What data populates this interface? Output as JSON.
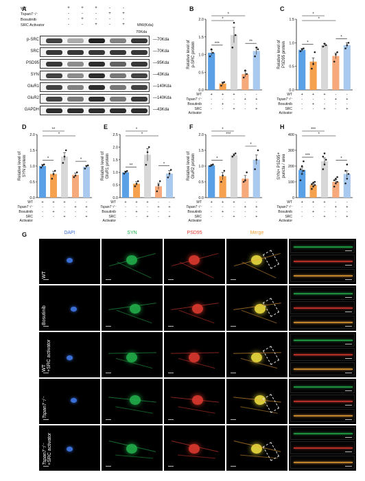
{
  "colors": {
    "wt": "#5aa0e6",
    "bosutinib": "#f6a14e",
    "src": "#d8d8d8",
    "tspan": "#f6a97a",
    "tspan_src": "#a9c9ee",
    "dapi": "#3b6fd8",
    "syn": "#22b14c",
    "psd95": "#e03a2f",
    "merge": "#f2a33a"
  },
  "panel_letters": [
    "A",
    "B",
    "C",
    "D",
    "E",
    "F",
    "G",
    "H"
  ],
  "western": {
    "lane_headers": [
      {
        "label": "WT",
        "symbols": [
          "+",
          "+",
          "+",
          "-",
          "-"
        ]
      },
      {
        "label": "Tspan7⁻/⁻",
        "symbols": [
          "-",
          "-",
          "-",
          "+",
          "+"
        ]
      },
      {
        "label": "Bosutinib",
        "symbols": [
          "-",
          "+",
          "-",
          "-",
          "-"
        ]
      },
      {
        "label": "SRC Activator",
        "symbols": [
          "-",
          "-",
          "+",
          "-",
          "+"
        ]
      }
    ],
    "mw_header": "MW(Kda)",
    "rows": [
      {
        "name": "p-SRC",
        "kda": "70Kda",
        "intensity": [
          0.85,
          0.35,
          1.0,
          0.55,
          0.9
        ]
      },
      {
        "name": "SRC",
        "kda": "70Kda",
        "intensity": [
          0.9,
          0.9,
          0.9,
          0.9,
          0.9
        ]
      },
      {
        "name": "PSD95",
        "kda": "95Kda",
        "intensity": [
          0.9,
          0.5,
          0.95,
          0.7,
          0.9
        ]
      },
      {
        "name": "SYN",
        "kda": "43Kda",
        "intensity": [
          0.85,
          0.5,
          0.95,
          0.6,
          0.85
        ]
      },
      {
        "name": "GluR1",
        "kda": "140Kda",
        "intensity": [
          0.85,
          0.55,
          0.95,
          0.6,
          0.85
        ]
      },
      {
        "name": "GluR2",
        "kda": "140Kda",
        "intensity": [
          0.85,
          0.6,
          0.95,
          0.6,
          0.9
        ]
      },
      {
        "name": "GAPDH",
        "kda": "43Kda",
        "intensity": [
          0.95,
          0.95,
          0.95,
          0.95,
          0.95
        ]
      }
    ],
    "top_kda": "70Kda"
  },
  "bar_row_labels": {
    "wt": "WT",
    "tspan": "Tspan7⁻/⁻",
    "bosutinib": "Bosutinib",
    "src_activator": "SRC",
    "src_activator2": "Activator",
    "wt_symbols": [
      "+",
      "+",
      "+",
      "-",
      "-"
    ],
    "tspan_symbols": [
      "-",
      "-",
      "-",
      "+",
      "+"
    ],
    "bos_symbols": [
      "-",
      "+",
      "-",
      "-",
      "-"
    ],
    "src_symbols": [
      "-",
      "-",
      "+",
      "-",
      "+"
    ]
  },
  "chart_data": [
    {
      "panel": "B",
      "type": "bar",
      "ylabel": "Relative level of\np-SRC protein",
      "ylim": [
        0,
        2.0
      ],
      "yticks": [
        "0.0",
        "0.5",
        "1.0",
        "1.5",
        "2.0"
      ],
      "values": [
        1.05,
        0.18,
        1.55,
        0.45,
        1.1
      ],
      "errors": [
        0.08,
        0.04,
        0.22,
        0.08,
        0.1
      ],
      "points": [
        [
          0.95,
          1.15,
          1.05
        ],
        [
          0.12,
          0.2,
          0.22
        ],
        [
          1.2,
          1.9,
          1.55
        ],
        [
          0.35,
          0.55,
          0.45
        ],
        [
          0.95,
          1.2,
          1.15
        ]
      ],
      "sig": [
        {
          "a": 0,
          "b": 1,
          "label": "***",
          "level": 0
        },
        {
          "a": 0,
          "b": 2,
          "label": "*",
          "level": 1
        },
        {
          "a": 0,
          "b": 3,
          "label": "*",
          "level": 2
        },
        {
          "a": 3,
          "b": 4,
          "label": "**",
          "level": 0
        }
      ]
    },
    {
      "panel": "C",
      "type": "bar",
      "ylabel": "Relative level of\nPSD95 protein",
      "ylim": [
        0,
        1.5
      ],
      "yticks": [
        "0.0",
        "0.5",
        "1.0",
        "1.5"
      ],
      "values": [
        0.85,
        0.6,
        0.95,
        0.72,
        0.95
      ],
      "errors": [
        0.03,
        0.08,
        0.03,
        0.06,
        0.05
      ],
      "points": [
        [
          0.82,
          0.86,
          0.88
        ],
        [
          0.45,
          0.55,
          0.8
        ],
        [
          0.92,
          0.98,
          0.95
        ],
        [
          0.6,
          0.75,
          0.8
        ],
        [
          0.88,
          0.95,
          1.0
        ]
      ],
      "sig": [
        {
          "a": 0,
          "b": 1,
          "label": "*",
          "level": 0
        },
        {
          "a": 0,
          "b": 3,
          "label": "*",
          "level": 1
        },
        {
          "a": 0,
          "b": 2,
          "label": "*",
          "level": 2
        },
        {
          "a": 3,
          "b": 4,
          "label": "*",
          "level": 0
        }
      ]
    },
    {
      "panel": "D",
      "type": "bar",
      "ylabel": "Relative level of\nSYN protein",
      "ylim": [
        0,
        2.0
      ],
      "yticks": [
        "0.0",
        "0.5",
        "1.0",
        "1.5",
        "2.0"
      ],
      "values": [
        1.0,
        0.75,
        1.3,
        0.72,
        0.98
      ],
      "errors": [
        0.05,
        0.08,
        0.12,
        0.06,
        0.04
      ],
      "points": [
        [
          0.95,
          1.02,
          1.05
        ],
        [
          0.6,
          0.75,
          0.85
        ],
        [
          1.1,
          1.3,
          1.5
        ],
        [
          0.65,
          0.7,
          0.8
        ],
        [
          0.92,
          1.0,
          1.02
        ]
      ],
      "sig": [
        {
          "a": 0,
          "b": 1,
          "label": "*",
          "level": 0
        },
        {
          "a": 0,
          "b": 3,
          "label": "*",
          "level": 1
        },
        {
          "a": 0,
          "b": 2,
          "label": "**",
          "level": 2
        },
        {
          "a": 3,
          "b": 4,
          "label": "*",
          "level": 0
        }
      ]
    },
    {
      "panel": "E",
      "type": "bar",
      "ylabel": "Relative level of\nGluR1 protein",
      "ylim": [
        0,
        2.5
      ],
      "yticks": [
        "0.0",
        "0.5",
        "1.0",
        "1.5",
        "2.0",
        "2.5"
      ],
      "values": [
        1.0,
        0.55,
        1.7,
        0.45,
        0.95
      ],
      "errors": [
        0.05,
        0.08,
        0.25,
        0.12,
        0.12
      ],
      "points": [
        [
          0.95,
          1.02,
          1.05
        ],
        [
          0.45,
          0.55,
          0.65
        ],
        [
          1.3,
          1.8,
          2.0
        ],
        [
          0.25,
          0.5,
          0.65
        ],
        [
          0.8,
          0.95,
          1.1
        ]
      ],
      "sig": [
        {
          "a": 0,
          "b": 1,
          "label": "**",
          "level": 0
        },
        {
          "a": 0,
          "b": 3,
          "label": "*",
          "level": 1
        },
        {
          "a": 0,
          "b": 2,
          "label": "*",
          "level": 2
        },
        {
          "a": 3,
          "b": 4,
          "label": "*",
          "level": 0
        }
      ]
    },
    {
      "panel": "F",
      "type": "bar",
      "ylabel": "Relative level of\nGluR2 protein",
      "ylim": [
        0,
        2.0
      ],
      "yticks": [
        "0.0",
        "0.5",
        "1.0",
        "1.5",
        "2.0"
      ],
      "values": [
        1.02,
        0.68,
        1.35,
        0.6,
        1.2
      ],
      "errors": [
        0.03,
        0.12,
        0.04,
        0.1,
        0.15
      ],
      "points": [
        [
          1.0,
          1.02,
          1.05
        ],
        [
          0.5,
          0.7,
          0.85
        ],
        [
          1.3,
          1.35,
          1.4
        ],
        [
          0.5,
          0.55,
          0.8
        ],
        [
          0.9,
          1.2,
          1.5
        ]
      ],
      "sig": [
        {
          "a": 0,
          "b": 1,
          "label": "*",
          "level": 0
        },
        {
          "a": 0,
          "b": 3,
          "label": "***",
          "level": 1
        },
        {
          "a": 0,
          "b": 2,
          "label": "*",
          "level": 2
        },
        {
          "a": 3,
          "b": 4,
          "label": "*",
          "level": 0
        }
      ]
    },
    {
      "panel": "H",
      "type": "bar",
      "ylabel": "SYN+ PSD95+\npuncta / area",
      "ylim": [
        0,
        400
      ],
      "yticks": [
        "0",
        "100",
        "200",
        "300",
        "400"
      ],
      "values": [
        175,
        80,
        230,
        100,
        150
      ],
      "errors": [
        18,
        10,
        22,
        14,
        20
      ],
      "points": [
        [
          110,
          150,
          170,
          180,
          200,
          230
        ],
        [
          55,
          70,
          80,
          85,
          95,
          100
        ],
        [
          180,
          210,
          240,
          260,
          280
        ],
        [
          70,
          90,
          100,
          110,
          120,
          130
        ],
        [
          90,
          120,
          150,
          170,
          210
        ]
      ],
      "sig": [
        {
          "a": 0,
          "b": 1,
          "label": "***",
          "level": 0
        },
        {
          "a": 0,
          "b": 3,
          "label": "*",
          "level": 1
        },
        {
          "a": 0,
          "b": 2,
          "label": "***",
          "level": 2
        },
        {
          "a": 3,
          "b": 4,
          "label": "*",
          "level": 0
        }
      ]
    }
  ],
  "microscopy": {
    "columns": [
      "DAPI",
      "SYN",
      "PSD95",
      "Merge"
    ],
    "rows": [
      {
        "label": "WT",
        "sub": ""
      },
      {
        "label": "Bosutinib",
        "sub": ""
      },
      {
        "label": "WT",
        "sub": "+SRC activator"
      },
      {
        "label": "Tspan7⁻/⁻",
        "sub": ""
      },
      {
        "label": "Tspan7⁻/⁻",
        "sub": "+SRC activator"
      }
    ]
  }
}
